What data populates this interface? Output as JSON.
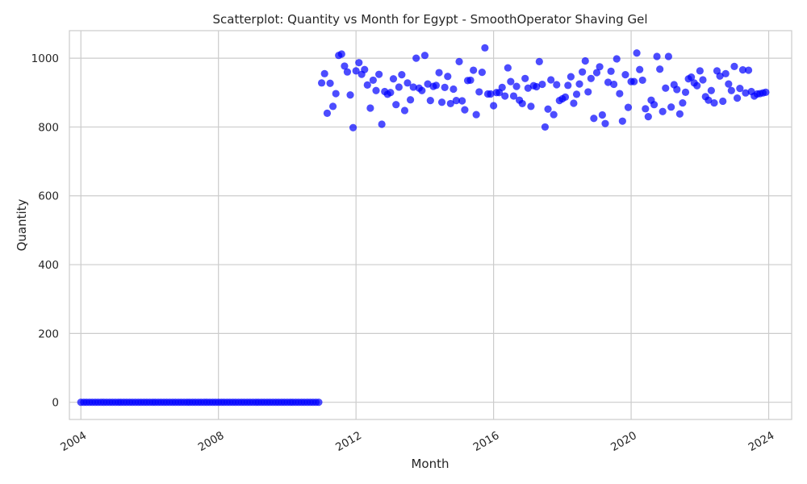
{
  "chart_data": {
    "type": "scatter",
    "title": "Scatterplot: Quantity vs Month for Egypt - SmoothOperator Shaving Gel",
    "xlabel": "Month",
    "ylabel": "Quantity",
    "x_ticks": [
      "2004",
      "2008",
      "2012",
      "2016",
      "2020",
      "2024"
    ],
    "y_ticks": [
      0,
      200,
      400,
      600,
      800,
      1000
    ],
    "xlim": [
      "2003-09-01",
      "2024-09-01"
    ],
    "ylim": [
      -50,
      1080
    ],
    "grid": true,
    "point_color": "#0000ff",
    "start_month": "2004-01",
    "values": [
      0,
      0,
      0,
      0,
      0,
      0,
      0,
      0,
      0,
      0,
      0,
      0,
      0,
      0,
      0,
      0,
      0,
      0,
      0,
      0,
      0,
      0,
      0,
      0,
      0,
      0,
      0,
      0,
      0,
      0,
      0,
      0,
      0,
      0,
      0,
      0,
      0,
      0,
      0,
      0,
      0,
      0,
      0,
      0,
      0,
      0,
      0,
      0,
      0,
      0,
      0,
      0,
      0,
      0,
      0,
      0,
      0,
      0,
      0,
      0,
      0,
      0,
      0,
      0,
      0,
      0,
      0,
      0,
      0,
      0,
      0,
      0,
      0,
      0,
      0,
      0,
      0,
      0,
      0,
      0,
      0,
      0,
      0,
      0,
      928,
      955,
      840,
      927,
      860,
      897,
      1008,
      1012,
      977,
      960,
      893,
      798,
      963,
      987,
      953,
      967,
      922,
      855,
      936,
      906,
      953,
      808,
      903,
      895,
      900,
      940,
      865,
      916,
      952,
      848,
      928,
      879,
      916,
      1000,
      913,
      906,
      1008,
      925,
      877,
      918,
      921,
      958,
      872,
      915,
      947,
      868,
      910,
      877,
      990,
      876,
      850,
      935,
      936,
      965,
      836,
      902,
      959,
      1030,
      896,
      896,
      862,
      900,
      900,
      915,
      890,
      972,
      932,
      890,
      918,
      878,
      868,
      941,
      913,
      860,
      920,
      917,
      990,
      924,
      800,
      852,
      937,
      836,
      923,
      877,
      882,
      887,
      921,
      946,
      869,
      895,
      925,
      960,
      992,
      902,
      941,
      825,
      958,
      975,
      835,
      810,
      930,
      962,
      924,
      998,
      897,
      817,
      952,
      857,
      932,
      932,
      1015,
      967,
      936,
      853,
      830,
      878,
      865,
      1005,
      968,
      845,
      913,
      1005,
      858,
      923,
      909,
      838,
      870,
      901,
      940,
      945,
      928,
      920,
      963,
      937,
      888,
      878,
      906,
      870,
      963,
      948,
      875,
      955,
      925,
      906,
      976,
      884,
      912,
      966,
      899,
      965,
      903,
      890,
      896,
      897,
      899,
      901
    ]
  }
}
